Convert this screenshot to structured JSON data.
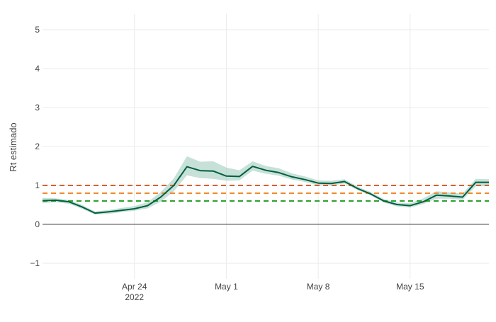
{
  "chart_data": {
    "type": "line",
    "title": "",
    "xlabel": "",
    "ylabel": "Rt estimado",
    "ylim": [
      -1.4,
      5.4
    ],
    "xlim": [
      "2022-04-17",
      "2022-05-21"
    ],
    "y_ticks": [
      -1,
      0,
      1,
      2,
      3,
      4,
      5
    ],
    "y_tick_labels": [
      "−1",
      "0",
      "1",
      "2",
      "3",
      "4",
      "5"
    ],
    "x_ticks": [
      {
        "date": "2022-04-24",
        "label": "Apr 24",
        "sublabel": "2022"
      },
      {
        "date": "2022-05-01",
        "label": "May 1",
        "sublabel": ""
      },
      {
        "date": "2022-05-08",
        "label": "May 8",
        "sublabel": ""
      },
      {
        "date": "2022-05-15",
        "label": "May 15",
        "sublabel": ""
      }
    ],
    "grid": true,
    "legend": "none",
    "series": [
      {
        "kind": "line",
        "color": "#005f3f",
        "points": [
          {
            "x": "2022-04-17",
            "y": 0.61
          },
          {
            "x": "2022-04-18",
            "y": 0.62
          },
          {
            "x": "2022-04-19",
            "y": 0.58
          },
          {
            "x": "2022-04-20",
            "y": 0.45
          },
          {
            "x": "2022-04-21",
            "y": 0.29
          },
          {
            "x": "2022-04-22",
            "y": 0.32
          },
          {
            "x": "2022-04-23",
            "y": 0.36
          },
          {
            "x": "2022-04-24",
            "y": 0.4
          },
          {
            "x": "2022-04-25",
            "y": 0.48
          },
          {
            "x": "2022-04-26",
            "y": 0.7
          },
          {
            "x": "2022-04-27",
            "y": 1.0
          },
          {
            "x": "2022-04-28",
            "y": 1.48
          },
          {
            "x": "2022-04-29",
            "y": 1.38
          },
          {
            "x": "2022-04-30",
            "y": 1.37
          },
          {
            "x": "2022-05-01",
            "y": 1.24
          },
          {
            "x": "2022-05-02",
            "y": 1.23
          },
          {
            "x": "2022-05-03",
            "y": 1.49
          },
          {
            "x": "2022-05-04",
            "y": 1.39
          },
          {
            "x": "2022-05-05",
            "y": 1.33
          },
          {
            "x": "2022-05-06",
            "y": 1.22
          },
          {
            "x": "2022-05-07",
            "y": 1.15
          },
          {
            "x": "2022-05-08",
            "y": 1.06
          },
          {
            "x": "2022-05-09",
            "y": 1.05
          },
          {
            "x": "2022-05-10",
            "y": 1.1
          },
          {
            "x": "2022-05-11",
            "y": 0.92
          },
          {
            "x": "2022-05-12",
            "y": 0.78
          },
          {
            "x": "2022-05-13",
            "y": 0.6
          },
          {
            "x": "2022-05-14",
            "y": 0.51
          },
          {
            "x": "2022-05-15",
            "y": 0.48
          },
          {
            "x": "2022-05-16",
            "y": 0.58
          },
          {
            "x": "2022-05-17",
            "y": 0.75
          },
          {
            "x": "2022-05-18",
            "y": 0.73
          },
          {
            "x": "2022-05-19",
            "y": 0.7
          },
          {
            "x": "2022-05-20",
            "y": 1.08
          },
          {
            "x": "2022-05-21",
            "y": 1.08
          }
        ]
      },
      {
        "kind": "band",
        "color": "#a9d1c3",
        "lower": [
          0.54,
          0.57,
          0.53,
          0.4,
          0.25,
          0.27,
          0.31,
          0.35,
          0.41,
          0.58,
          0.85,
          1.26,
          1.19,
          1.17,
          1.12,
          1.13,
          1.38,
          1.3,
          1.25,
          1.15,
          1.09,
          1.0,
          1.0,
          1.05,
          0.88,
          0.74,
          0.56,
          0.46,
          0.43,
          0.52,
          0.66,
          0.66,
          0.63,
          0.98,
          0.98
        ],
        "upper": [
          0.68,
          0.67,
          0.63,
          0.5,
          0.33,
          0.37,
          0.42,
          0.47,
          0.57,
          0.83,
          1.18,
          1.75,
          1.61,
          1.62,
          1.46,
          1.39,
          1.62,
          1.5,
          1.44,
          1.31,
          1.23,
          1.13,
          1.12,
          1.16,
          0.97,
          0.83,
          0.65,
          0.56,
          0.54,
          0.67,
          0.85,
          0.82,
          0.79,
          1.17,
          1.16
        ]
      },
      {
        "kind": "hline",
        "y": 1.0,
        "color": "#d95f2b",
        "dash": true
      },
      {
        "kind": "hline",
        "y": 0.8,
        "color": "#f0892a",
        "dash": true
      },
      {
        "kind": "hline",
        "y": 0.6,
        "color": "#2ca02c",
        "dash": true
      }
    ]
  }
}
